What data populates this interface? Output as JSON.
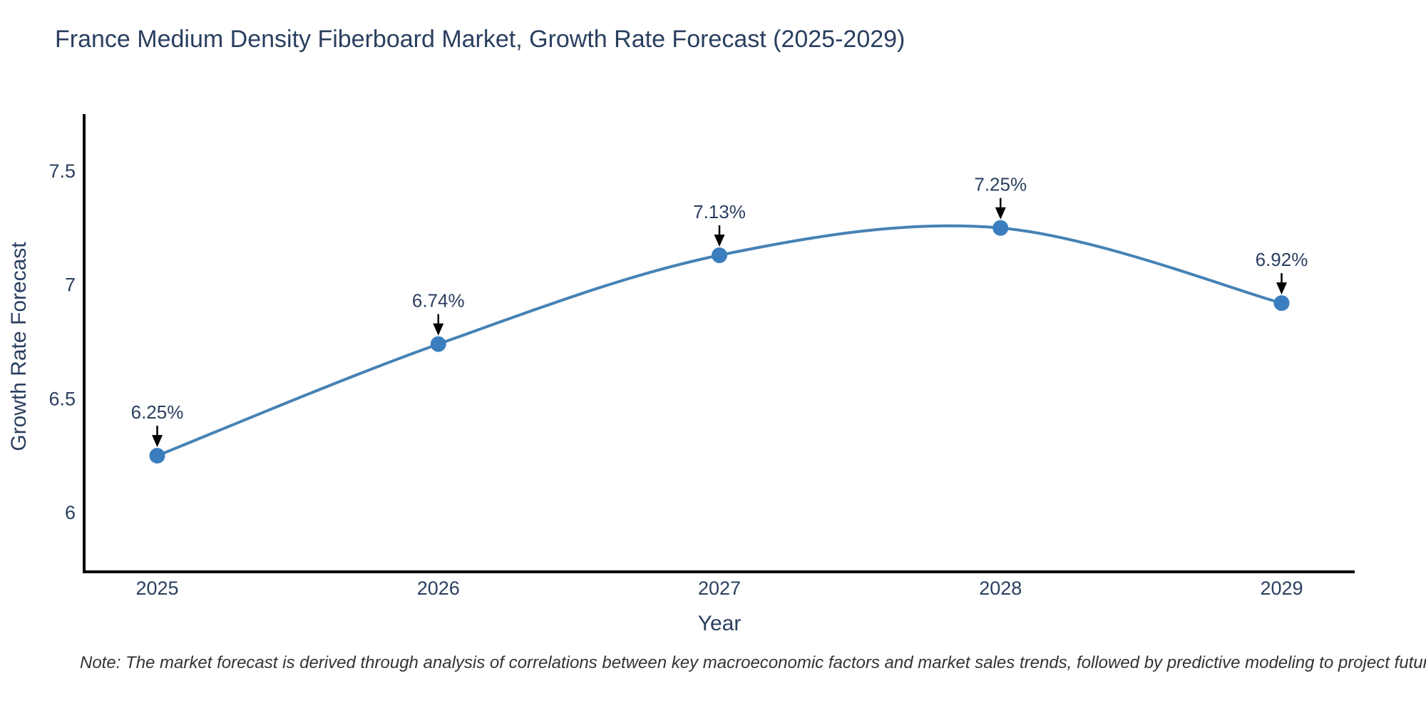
{
  "page": {
    "background": "#ffffff"
  },
  "chart_data": {
    "type": "line",
    "title": "France Medium Density Fiberboard Market, Growth Rate Forecast (2025-2029)",
    "xlabel": "Year",
    "ylabel": "Growth Rate Forecast",
    "x": [
      2025,
      2026,
      2027,
      2028,
      2029
    ],
    "series": [
      {
        "name": "Growth Rate Forecast",
        "values": [
          6.25,
          6.74,
          7.13,
          7.25,
          6.92
        ]
      }
    ],
    "point_labels": [
      "6.25%",
      "6.74%",
      "7.13%",
      "7.25%",
      "6.92%"
    ],
    "xticks": [
      2025,
      2026,
      2027,
      2028,
      2029
    ],
    "yticks": [
      6,
      6.5,
      7,
      7.5
    ],
    "xlim": [
      2024.74,
      2029.26
    ],
    "ylim": [
      5.74,
      7.75
    ],
    "grid": false,
    "legend": "none",
    "line_shape": "spline",
    "marker_diameter": 22,
    "colors": {
      "line": "#4682b4",
      "marker": "#3a7ebf",
      "axis": "#000000",
      "tick_text": "#2a3f5f",
      "annotation_text": "#2a3f5f",
      "annotation_arrow": "#000000",
      "title_text": "#2a3f5f",
      "note_text": "#333333",
      "background": "#ffffff"
    }
  },
  "note": {
    "text": "Note: The market forecast is derived through analysis of correlations between key macroeconomic factors and market sales trends, followed by predictive modeling to project future sales"
  }
}
